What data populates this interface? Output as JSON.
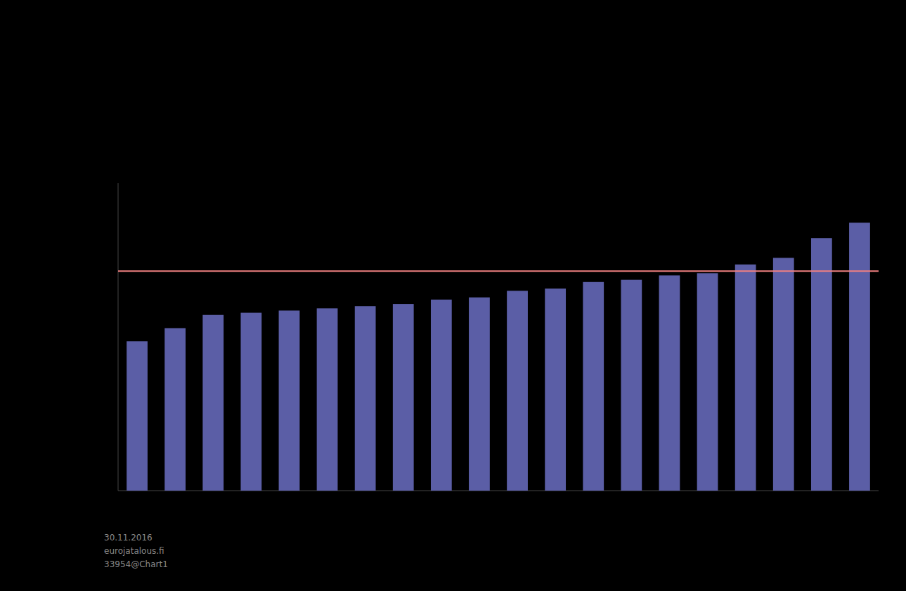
{
  "chart_data": {
    "type": "bar",
    "categories": [
      null,
      null,
      null,
      null,
      null,
      null,
      null,
      null,
      null,
      null,
      null,
      null,
      null,
      null,
      null,
      null,
      null,
      null,
      null,
      null
    ],
    "series": [
      {
        "type": "bar",
        "color": "#5b5ea6",
        "values": [
          68,
          74,
          80,
          81,
          82,
          83,
          84,
          85,
          87,
          88,
          91,
          92,
          95,
          96,
          98,
          99,
          103,
          106,
          115,
          122
        ]
      }
    ],
    "reference_line": {
      "value": 100,
      "color": "#f08080"
    },
    "ylim": [
      0,
      140
    ],
    "grid": false,
    "tick_labels": false,
    "annotations": [
      {
        "text": "30.11.2016\neurojatalous.fi\n33954@Chart1",
        "color": "#888888"
      }
    ]
  }
}
